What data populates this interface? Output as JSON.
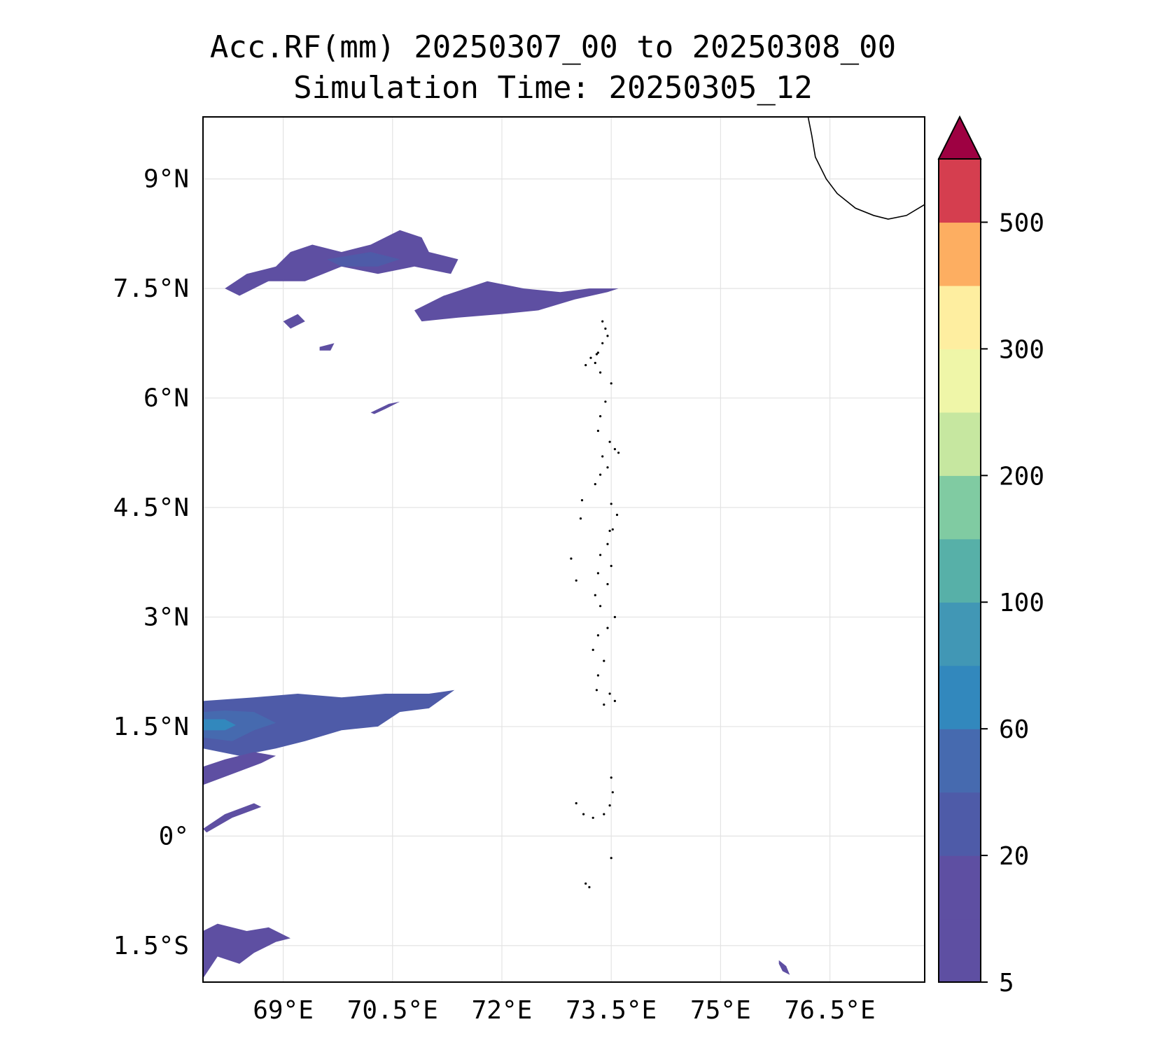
{
  "title_line1": "Acc.RF(mm) 20250307_00 to 20250308_00",
  "title_line2": "Simulation Time: 20250305_12",
  "map": {
    "projection": "PlateCarree",
    "lon_range": [
      67.9,
      77.8
    ],
    "lat_range": [
      -2.0,
      9.85
    ],
    "grid": true,
    "lon_ticks": [
      {
        "value": 69.0,
        "label": "69°E"
      },
      {
        "value": 70.5,
        "label": "70.5°E"
      },
      {
        "value": 72.0,
        "label": "72°E"
      },
      {
        "value": 73.5,
        "label": "73.5°E"
      },
      {
        "value": 75.0,
        "label": "75°E"
      },
      {
        "value": 76.5,
        "label": "76.5°E"
      }
    ],
    "lat_ticks": [
      {
        "value": 9.0,
        "label": "9°N"
      },
      {
        "value": 7.5,
        "label": "7.5°N"
      },
      {
        "value": 6.0,
        "label": "6°N"
      },
      {
        "value": 4.5,
        "label": "4.5°N"
      },
      {
        "value": 3.0,
        "label": "3°N"
      },
      {
        "value": 1.5,
        "label": "1.5°N"
      },
      {
        "value": 0.0,
        "label": "0°"
      },
      {
        "value": -1.5,
        "label": "1.5°S"
      }
    ],
    "rain_regions": [
      {
        "name": "band-north-west",
        "level": 5,
        "coords": [
          [
            68.2,
            7.5
          ],
          [
            68.5,
            7.7
          ],
          [
            68.9,
            7.8
          ],
          [
            69.1,
            8.0
          ],
          [
            69.4,
            8.1
          ],
          [
            69.8,
            8.0
          ],
          [
            70.2,
            8.1
          ],
          [
            70.6,
            8.3
          ],
          [
            70.9,
            8.2
          ],
          [
            71.0,
            8.0
          ],
          [
            71.4,
            7.9
          ],
          [
            71.3,
            7.7
          ],
          [
            70.8,
            7.8
          ],
          [
            70.3,
            7.7
          ],
          [
            69.8,
            7.8
          ],
          [
            69.3,
            7.6
          ],
          [
            68.8,
            7.6
          ],
          [
            68.4,
            7.4
          ]
        ]
      },
      {
        "name": "band-north-east",
        "level": 5,
        "coords": [
          [
            70.8,
            7.2
          ],
          [
            71.2,
            7.4
          ],
          [
            71.8,
            7.6
          ],
          [
            72.3,
            7.5
          ],
          [
            72.8,
            7.45
          ],
          [
            73.2,
            7.5
          ],
          [
            73.6,
            7.5
          ],
          [
            73.45,
            7.45
          ],
          [
            73.0,
            7.35
          ],
          [
            72.5,
            7.2
          ],
          [
            72.0,
            7.15
          ],
          [
            71.4,
            7.1
          ],
          [
            70.9,
            7.05
          ]
        ]
      },
      {
        "name": "band-north-core",
        "level": 10,
        "coords": [
          [
            69.6,
            7.9
          ],
          [
            70.2,
            8.0
          ],
          [
            70.6,
            7.9
          ],
          [
            70.3,
            7.8
          ],
          [
            69.8,
            7.8
          ]
        ]
      },
      {
        "name": "cell-north-small-1",
        "level": 5,
        "coords": [
          [
            69.0,
            7.05
          ],
          [
            69.2,
            7.15
          ],
          [
            69.3,
            7.05
          ],
          [
            69.1,
            6.95
          ]
        ]
      },
      {
        "name": "cell-north-small-2",
        "level": 5,
        "coords": [
          [
            69.5,
            6.7
          ],
          [
            69.7,
            6.75
          ],
          [
            69.65,
            6.65
          ],
          [
            69.5,
            6.65
          ]
        ]
      },
      {
        "name": "cell-mid",
        "level": 5,
        "coords": [
          [
            70.2,
            5.8
          ],
          [
            70.45,
            5.92
          ],
          [
            70.6,
            5.95
          ],
          [
            70.4,
            5.85
          ],
          [
            70.25,
            5.78
          ]
        ]
      },
      {
        "name": "band-south",
        "level": 10,
        "coords": [
          [
            67.9,
            1.2
          ],
          [
            68.4,
            1.1
          ],
          [
            68.9,
            1.2
          ],
          [
            69.3,
            1.3
          ],
          [
            69.8,
            1.45
          ],
          [
            70.3,
            1.5
          ],
          [
            70.6,
            1.7
          ],
          [
            71.0,
            1.75
          ],
          [
            71.35,
            2.0
          ],
          [
            71.0,
            1.95
          ],
          [
            70.4,
            1.95
          ],
          [
            69.8,
            1.9
          ],
          [
            69.2,
            1.95
          ],
          [
            68.6,
            1.9
          ],
          [
            67.9,
            1.85
          ]
        ]
      },
      {
        "name": "band-south-tail",
        "level": 5,
        "coords": [
          [
            67.9,
            0.7
          ],
          [
            68.3,
            0.85
          ],
          [
            68.7,
            1.0
          ],
          [
            68.9,
            1.1
          ],
          [
            68.6,
            1.15
          ],
          [
            68.2,
            1.05
          ],
          [
            67.9,
            0.95
          ]
        ]
      },
      {
        "name": "band-south-core-1",
        "level": 20,
        "coords": [
          [
            67.9,
            1.35
          ],
          [
            68.3,
            1.3
          ],
          [
            68.6,
            1.45
          ],
          [
            68.9,
            1.55
          ],
          [
            68.6,
            1.7
          ],
          [
            68.2,
            1.72
          ],
          [
            67.9,
            1.7
          ]
        ]
      },
      {
        "name": "band-south-core-2",
        "level": 40,
        "coords": [
          [
            67.9,
            1.45
          ],
          [
            68.2,
            1.45
          ],
          [
            68.35,
            1.52
          ],
          [
            68.2,
            1.6
          ],
          [
            67.9,
            1.6
          ]
        ]
      },
      {
        "name": "cell-equator",
        "level": 5,
        "coords": [
          [
            67.9,
            0.1
          ],
          [
            68.2,
            0.3
          ],
          [
            68.6,
            0.45
          ],
          [
            68.7,
            0.4
          ],
          [
            68.3,
            0.25
          ],
          [
            67.95,
            0.05
          ]
        ]
      },
      {
        "name": "cell-south",
        "level": 5,
        "coords": [
          [
            67.9,
            -1.3
          ],
          [
            68.1,
            -1.2
          ],
          [
            68.5,
            -1.3
          ],
          [
            68.8,
            -1.25
          ],
          [
            69.1,
            -1.4
          ],
          [
            68.9,
            -1.45
          ],
          [
            68.6,
            -1.6
          ],
          [
            68.4,
            -1.75
          ],
          [
            68.1,
            -1.65
          ],
          [
            67.9,
            -1.95
          ]
        ]
      },
      {
        "name": "cell-south-east",
        "level": 5,
        "coords": [
          [
            75.8,
            -1.7
          ],
          [
            75.9,
            -1.78
          ],
          [
            75.95,
            -1.9
          ],
          [
            75.85,
            -1.85
          ],
          [
            75.8,
            -1.75
          ]
        ]
      }
    ],
    "coastline_india": [
      [
        76.2,
        9.85
      ],
      [
        76.25,
        9.6
      ],
      [
        76.3,
        9.3
      ],
      [
        76.45,
        9.0
      ],
      [
        76.6,
        8.8
      ],
      [
        76.85,
        8.6
      ],
      [
        77.1,
        8.5
      ],
      [
        77.3,
        8.45
      ],
      [
        77.55,
        8.5
      ],
      [
        77.8,
        8.65
      ]
    ]
  },
  "colorbar": {
    "label_levels": [
      "5",
      "20",
      "60",
      "100",
      "200",
      "300",
      "500"
    ],
    "segments": [
      "#5e4fa2",
      "#5e4fa2",
      "#4e5ba8",
      "#466aaf",
      "#3288bd",
      "#4197b5",
      "#57b0a8",
      "#80cba2",
      "#c6e7a0",
      "#eff6a8",
      "#feeea0",
      "#fdae61",
      "#d53e4f"
    ],
    "extend_color": "#9e0142"
  }
}
